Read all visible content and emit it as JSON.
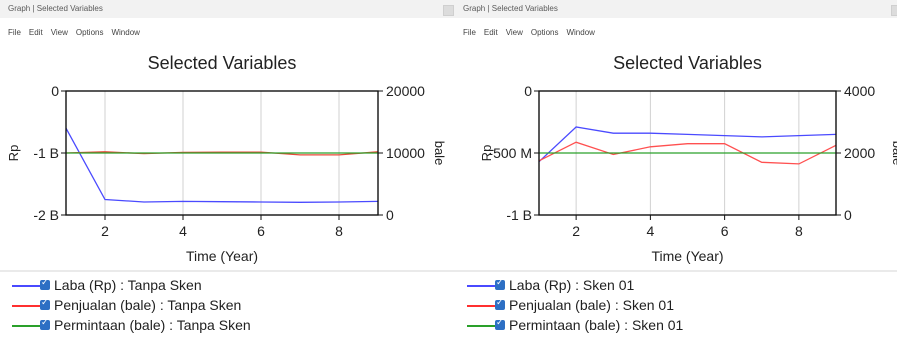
{
  "windows": [
    {
      "title": "Graph | Selected Variables",
      "menu": [
        "File",
        "Edit",
        "View",
        "Options",
        "Window"
      ],
      "legend": [
        {
          "label": "Laba (Rp) : Tanpa Sken",
          "color": "#4a4aff"
        },
        {
          "label": "Penjualan (bale) : Tanpa Sken",
          "color": "#ff3030"
        },
        {
          "label": "Permintaan (bale) : Tanpa Sken",
          "color": "#2aa02a"
        }
      ]
    },
    {
      "title": "Graph | Selected Variables",
      "menu": [
        "File",
        "Edit",
        "View",
        "Options",
        "Window"
      ],
      "legend": [
        {
          "label": "Laba (Rp) : Sken 01",
          "color": "#4a4aff"
        },
        {
          "label": "Penjualan (bale) : Sken 01",
          "color": "#ff3030"
        },
        {
          "label": "Permintaan (bale) : Sken 01",
          "color": "#2aa02a"
        }
      ]
    }
  ],
  "chart_data": [
    {
      "type": "line",
      "title": "Selected Variables",
      "xlabel": "Time (Year)",
      "ylabel": "Rp",
      "y2label": "bale",
      "xlim": [
        1,
        9
      ],
      "x_ticks": [
        2,
        4,
        6,
        8
      ],
      "ylim": [
        -2000000000,
        0
      ],
      "y_ticks": [
        {
          "v": 0,
          "label": "0"
        },
        {
          "v": -1000000000,
          "label": "-1 B"
        },
        {
          "v": -2000000000,
          "label": "-2 B"
        }
      ],
      "y2lim": [
        0,
        20000
      ],
      "y2_ticks": [
        {
          "v": 20000,
          "label": "20000"
        },
        {
          "v": 10000,
          "label": "10000"
        },
        {
          "v": 0,
          "label": "0"
        }
      ],
      "grid": true,
      "x": [
        1,
        2,
        3,
        4,
        5,
        6,
        7,
        8,
        9
      ],
      "series": [
        {
          "name": "Laba (Rp) : Tanpa Sken",
          "axis": "left",
          "color": "#4a4aff",
          "values": [
            -600000000,
            -1750000000,
            -1790000000,
            -1780000000,
            -1785000000,
            -1790000000,
            -1795000000,
            -1790000000,
            -1780000000
          ]
        },
        {
          "name": "Penjualan (bale) : Tanpa Sken",
          "axis": "right",
          "color": "#e84a3a",
          "values": [
            10000,
            10200,
            9900,
            10100,
            10150,
            10150,
            9700,
            9700,
            10200
          ]
        },
        {
          "name": "Permintaan (bale) : Tanpa Sken",
          "axis": "right",
          "color": "#2aa02a",
          "values": [
            10000,
            10000,
            10000,
            10000,
            10000,
            10000,
            10000,
            10000,
            10000
          ]
        }
      ]
    },
    {
      "type": "line",
      "title": "Selected Variables",
      "xlabel": "Time (Year)",
      "ylabel": "Rp",
      "y2label": "bale",
      "xlim": [
        1,
        9
      ],
      "x_ticks": [
        2,
        4,
        6,
        8
      ],
      "ylim": [
        -1000000000,
        0
      ],
      "y_ticks": [
        {
          "v": 0,
          "label": "0"
        },
        {
          "v": -500000000,
          "label": "-500 M"
        },
        {
          "v": -1000000000,
          "label": "-1 B"
        }
      ],
      "y2lim": [
        0,
        4000
      ],
      "y2_ticks": [
        {
          "v": 4000,
          "label": "4000"
        },
        {
          "v": 2000,
          "label": "2000"
        },
        {
          "v": 0,
          "label": "0"
        }
      ],
      "grid": true,
      "x": [
        1,
        2,
        3,
        4,
        5,
        6,
        7,
        8,
        9
      ],
      "series": [
        {
          "name": "Laba (Rp) : Sken 01",
          "axis": "left",
          "color": "#4a4aff",
          "values": [
            -570000000,
            -290000000,
            -340000000,
            -340000000,
            -350000000,
            -360000000,
            -370000000,
            -360000000,
            -350000000
          ]
        },
        {
          "name": "Penjualan (bale) : Sken 01",
          "axis": "right",
          "color": "#ff5050",
          "values": [
            1750,
            2350,
            1950,
            2200,
            2300,
            2300,
            1700,
            1650,
            2250
          ]
        },
        {
          "name": "Permintaan (bale) : Sken 01",
          "axis": "right",
          "color": "#2aa02a",
          "values": [
            2000,
            2000,
            2000,
            2000,
            2000,
            2000,
            2000,
            2000,
            2000
          ]
        }
      ]
    }
  ]
}
